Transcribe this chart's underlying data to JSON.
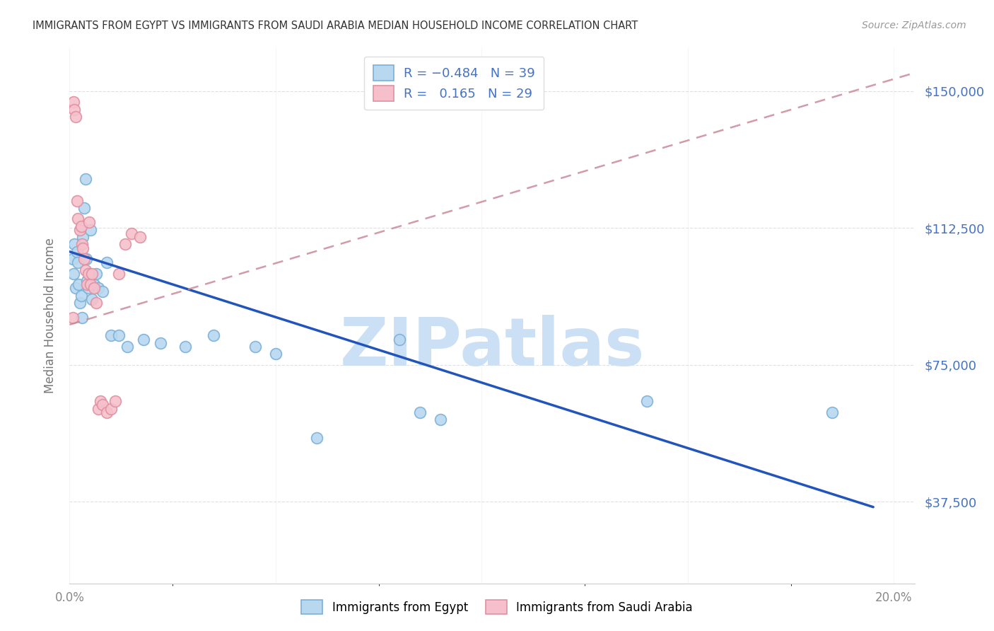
{
  "title": "IMMIGRANTS FROM EGYPT VS IMMIGRANTS FROM SAUDI ARABIA MEDIAN HOUSEHOLD INCOME CORRELATION CHART",
  "source": "Source: ZipAtlas.com",
  "ylabel": "Median Household Income",
  "xlim": [
    0.0,
    0.205
  ],
  "ylim": [
    15000,
    162000
  ],
  "yticks": [
    37500,
    75000,
    112500,
    150000
  ],
  "xticks": [
    0.0,
    0.05,
    0.1,
    0.15,
    0.2
  ],
  "ytick_labels": [
    "$37,500",
    "$75,000",
    "$112,500",
    "$150,000"
  ],
  "egypt_marker_face": "#b8d8f0",
  "egypt_marker_edge": "#7ab0d8",
  "saudi_marker_face": "#f5c0cc",
  "saudi_marker_edge": "#e090a0",
  "trend_egypt_color": "#2255bb",
  "trend_saudi_color": "#cc8898",
  "legend_label_egypt": "Immigrants from Egypt",
  "legend_label_saudi": "Immigrants from Saudi Arabia",
  "watermark": "ZIPatlas",
  "watermark_color": "#cce0f5",
  "background_color": "#ffffff",
  "grid_color": "#cccccc",
  "title_color": "#333333",
  "source_color": "#999999",
  "axis_label_color": "#777777",
  "right_tick_color": "#4472c4",
  "egypt_x": [
    0.0008,
    0.001,
    0.0012,
    0.0015,
    0.0018,
    0.002,
    0.0022,
    0.0025,
    0.0028,
    0.003,
    0.0032,
    0.0035,
    0.0038,
    0.004,
    0.0042,
    0.0045,
    0.0048,
    0.005,
    0.0055,
    0.006,
    0.0065,
    0.007,
    0.008,
    0.009,
    0.01,
    0.012,
    0.014,
    0.018,
    0.022,
    0.028,
    0.035,
    0.045,
    0.05,
    0.06,
    0.08,
    0.085,
    0.09,
    0.14,
    0.185
  ],
  "egypt_y": [
    104000,
    100000,
    108000,
    96000,
    106000,
    103000,
    97000,
    92000,
    94000,
    88000,
    110000,
    118000,
    126000,
    104000,
    98000,
    96000,
    100000,
    112000,
    93000,
    97000,
    100000,
    96000,
    95000,
    103000,
    83000,
    83000,
    80000,
    82000,
    81000,
    80000,
    83000,
    80000,
    78000,
    55000,
    82000,
    62000,
    60000,
    65000,
    62000
  ],
  "saudi_x": [
    0.0008,
    0.001,
    0.0012,
    0.0015,
    0.0018,
    0.002,
    0.0025,
    0.0028,
    0.003,
    0.0032,
    0.0035,
    0.0038,
    0.0042,
    0.0045,
    0.0048,
    0.005,
    0.0055,
    0.006,
    0.0065,
    0.007,
    0.0075,
    0.008,
    0.009,
    0.01,
    0.011,
    0.012,
    0.0135,
    0.015,
    0.017
  ],
  "saudi_y": [
    88000,
    147000,
    145000,
    143000,
    120000,
    115000,
    112000,
    113000,
    108000,
    107000,
    104000,
    101000,
    97000,
    100000,
    114000,
    97000,
    100000,
    96000,
    92000,
    63000,
    65000,
    64000,
    62000,
    63000,
    65000,
    100000,
    108000,
    111000,
    110000
  ],
  "egypt_trend_x": [
    0.0,
    0.195
  ],
  "egypt_trend_y": [
    106000,
    36000
  ],
  "saudi_trend_x": [
    0.0,
    0.205
  ],
  "saudi_trend_y": [
    86000,
    155000
  ]
}
